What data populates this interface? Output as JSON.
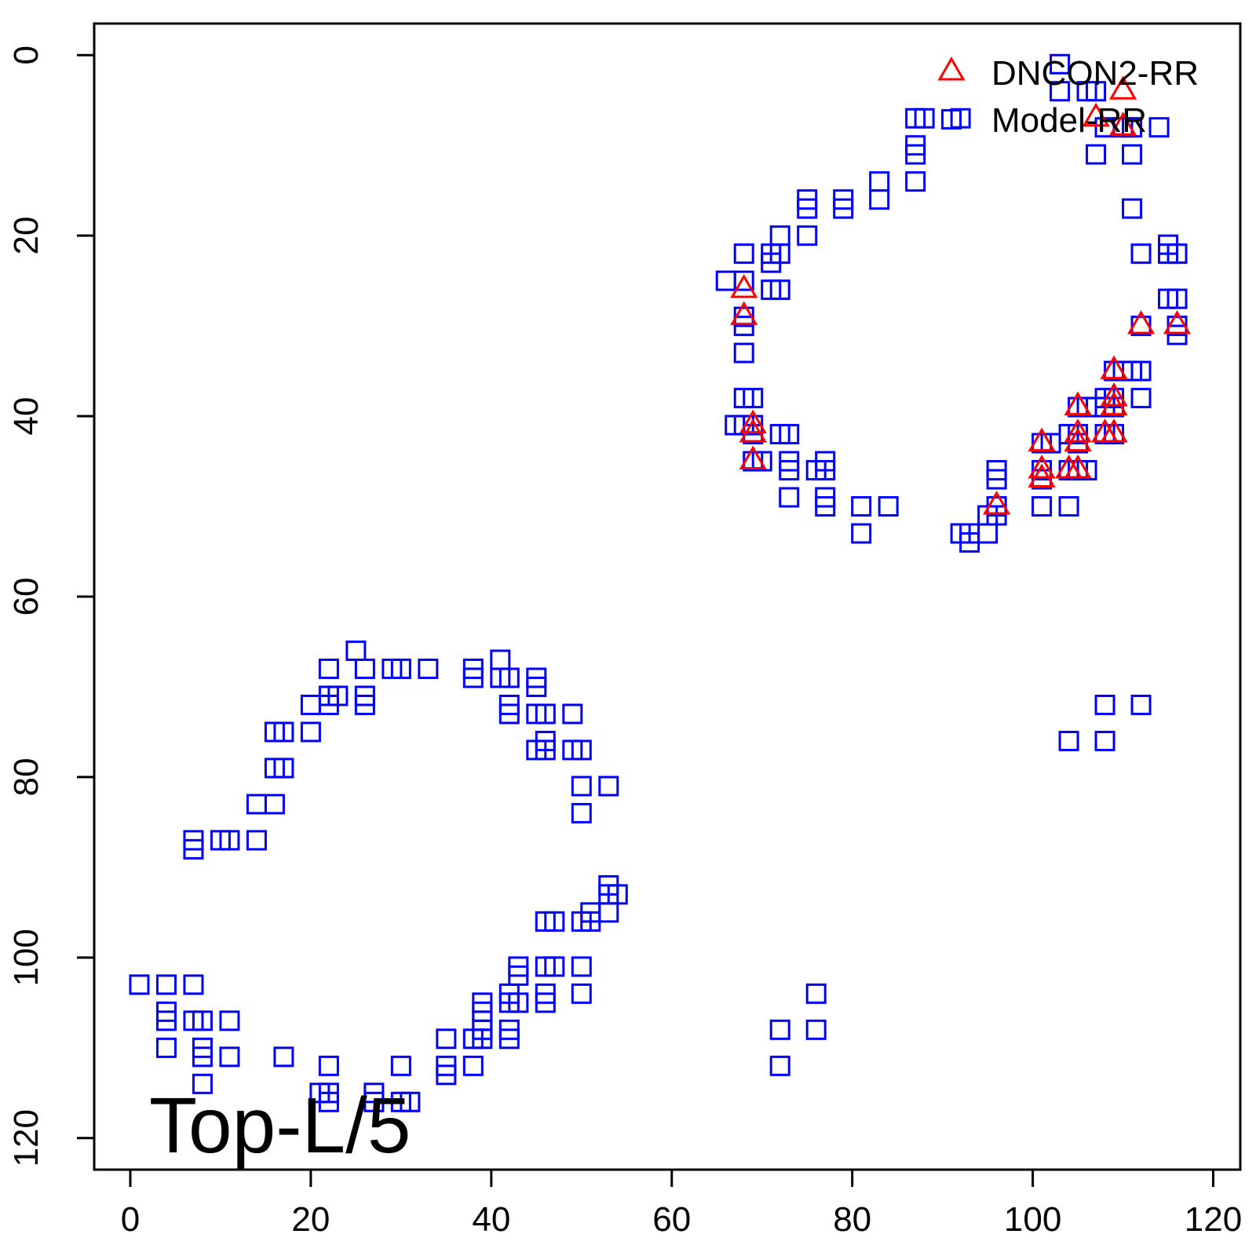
{
  "chart_data": {
    "type": "scatter",
    "title": "",
    "xlabel": "",
    "ylabel": "",
    "xlim": [
      -4,
      123
    ],
    "ylim": [
      123.5,
      -3.5
    ],
    "y_inverted": true,
    "grid": false,
    "legend_position": "top-right",
    "x_ticks": [
      0,
      20,
      40,
      60,
      80,
      100,
      120
    ],
    "x_tick_labels": [
      "0",
      "20",
      "40",
      "60",
      "80",
      "100",
      "120"
    ],
    "y_ticks": [
      0,
      20,
      40,
      60,
      80,
      100,
      120
    ],
    "y_tick_labels": [
      "0",
      "20",
      "40",
      "60",
      "80",
      "100",
      "120"
    ],
    "annotation": "Top-L/5",
    "series": [
      {
        "name": "DNCON2-RR",
        "marker": "triangle",
        "color": "#ff0000",
        "points": [
          [
            110,
            4
          ],
          [
            110,
            8
          ],
          [
            107,
            7
          ],
          [
            112,
            30
          ],
          [
            116,
            30
          ],
          [
            109,
            35
          ],
          [
            109,
            38
          ],
          [
            109,
            39
          ],
          [
            109,
            42
          ],
          [
            108,
            42
          ],
          [
            105,
            39
          ],
          [
            105,
            42
          ],
          [
            105,
            43
          ],
          [
            105,
            46
          ],
          [
            104,
            46
          ],
          [
            101,
            43
          ],
          [
            101,
            46
          ],
          [
            101,
            47
          ],
          [
            96,
            50
          ],
          [
            68,
            26
          ],
          [
            68,
            29
          ],
          [
            69,
            41
          ],
          [
            69,
            42
          ],
          [
            69,
            45
          ]
        ]
      },
      {
        "name": "Model-RR",
        "marker": "square",
        "color": "#0000ff",
        "points": [
          [
            103,
            1
          ],
          [
            103,
            4
          ],
          [
            106,
            4
          ],
          [
            107,
            4
          ],
          [
            108,
            8
          ],
          [
            110,
            8
          ],
          [
            111,
            8
          ],
          [
            114,
            8
          ],
          [
            107,
            11
          ],
          [
            111,
            11
          ],
          [
            111,
            17
          ],
          [
            87,
            7
          ],
          [
            88,
            7
          ],
          [
            92,
            7
          ],
          [
            87,
            10
          ],
          [
            87,
            11
          ],
          [
            87,
            14
          ],
          [
            83,
            14
          ],
          [
            83,
            16
          ],
          [
            75,
            16
          ],
          [
            75,
            17
          ],
          [
            79,
            16
          ],
          [
            79,
            17
          ],
          [
            75,
            20
          ],
          [
            72,
            20
          ],
          [
            71,
            22
          ],
          [
            72,
            22
          ],
          [
            71,
            23
          ],
          [
            68,
            22
          ],
          [
            66,
            25
          ],
          [
            68,
            25
          ],
          [
            71,
            26
          ],
          [
            72,
            26
          ],
          [
            68,
            29
          ],
          [
            68,
            30
          ],
          [
            68,
            33
          ],
          [
            68,
            38
          ],
          [
            69,
            38
          ],
          [
            67,
            41
          ],
          [
            68,
            41
          ],
          [
            69,
            41
          ],
          [
            69,
            42
          ],
          [
            69,
            45
          ],
          [
            70,
            45
          ],
          [
            72,
            42
          ],
          [
            73,
            42
          ],
          [
            73,
            45
          ],
          [
            73,
            46
          ],
          [
            73,
            49
          ],
          [
            76,
            46
          ],
          [
            77,
            45
          ],
          [
            77,
            46
          ],
          [
            77,
            49
          ],
          [
            77,
            50
          ],
          [
            81,
            50
          ],
          [
            84,
            50
          ],
          [
            81,
            53
          ],
          [
            92,
            53
          ],
          [
            93,
            53
          ],
          [
            93,
            54
          ],
          [
            95,
            53
          ],
          [
            95,
            51
          ],
          [
            96,
            51
          ],
          [
            96,
            50
          ],
          [
            96,
            46
          ],
          [
            96,
            47
          ],
          [
            101,
            43
          ],
          [
            102,
            43
          ],
          [
            101,
            46
          ],
          [
            101,
            47
          ],
          [
            101,
            50
          ],
          [
            104,
            50
          ],
          [
            104,
            42
          ],
          [
            104,
            46
          ],
          [
            105,
            46
          ],
          [
            106,
            46
          ],
          [
            105,
            42
          ],
          [
            105,
            43
          ],
          [
            105,
            39
          ],
          [
            106,
            39
          ],
          [
            107,
            39
          ],
          [
            108,
            42
          ],
          [
            109,
            42
          ],
          [
            108,
            39
          ],
          [
            109,
            39
          ],
          [
            108,
            38
          ],
          [
            109,
            38
          ],
          [
            109,
            35
          ],
          [
            110,
            35
          ],
          [
            111,
            35
          ],
          [
            112,
            35
          ],
          [
            112,
            38
          ],
          [
            112,
            30
          ],
          [
            116,
            30
          ],
          [
            116,
            31
          ],
          [
            112,
            22
          ],
          [
            115,
            22
          ],
          [
            116,
            22
          ],
          [
            115,
            21
          ],
          [
            115,
            27
          ],
          [
            116,
            27
          ],
          [
            108,
            72
          ],
          [
            112,
            72
          ],
          [
            104,
            76
          ],
          [
            108,
            76
          ],
          [
            25,
            66
          ],
          [
            22,
            68
          ],
          [
            26,
            68
          ],
          [
            29,
            68
          ],
          [
            30,
            68
          ],
          [
            33,
            68
          ],
          [
            38,
            68
          ],
          [
            38,
            69
          ],
          [
            41,
            67
          ],
          [
            41,
            69
          ],
          [
            42,
            69
          ],
          [
            22,
            71
          ],
          [
            23,
            71
          ],
          [
            22,
            72
          ],
          [
            26,
            71
          ],
          [
            26,
            72
          ],
          [
            20,
            72
          ],
          [
            20,
            75
          ],
          [
            42,
            72
          ],
          [
            42,
            73
          ],
          [
            45,
            69
          ],
          [
            45,
            70
          ],
          [
            45,
            73
          ],
          [
            46,
            73
          ],
          [
            46,
            76
          ],
          [
            45,
            77
          ],
          [
            46,
            77
          ],
          [
            49,
            73
          ],
          [
            49,
            77
          ],
          [
            50,
            77
          ],
          [
            16,
            75
          ],
          [
            17,
            75
          ],
          [
            16,
            79
          ],
          [
            17,
            79
          ],
          [
            14,
            83
          ],
          [
            16,
            83
          ],
          [
            50,
            81
          ],
          [
            53,
            81
          ],
          [
            50,
            84
          ],
          [
            7,
            87
          ],
          [
            7,
            88
          ],
          [
            10,
            87
          ],
          [
            11,
            87
          ],
          [
            14,
            87
          ],
          [
            53,
            92
          ],
          [
            53,
            93
          ],
          [
            54,
            93
          ],
          [
            53,
            95
          ],
          [
            51,
            95
          ],
          [
            51,
            96
          ],
          [
            50,
            96
          ],
          [
            46,
            96
          ],
          [
            47,
            96
          ],
          [
            46,
            101
          ],
          [
            47,
            101
          ],
          [
            50,
            101
          ],
          [
            43,
            101
          ],
          [
            43,
            102
          ],
          [
            50,
            104
          ],
          [
            46,
            104
          ],
          [
            46,
            105
          ],
          [
            42,
            104
          ],
          [
            42,
            105
          ],
          [
            43,
            105
          ],
          [
            39,
            105
          ],
          [
            39,
            106
          ],
          [
            39,
            107
          ],
          [
            39,
            108
          ],
          [
            39,
            109
          ],
          [
            38,
            109
          ],
          [
            42,
            108
          ],
          [
            42,
            109
          ],
          [
            35,
            109
          ],
          [
            35,
            112
          ],
          [
            35,
            113
          ],
          [
            38,
            112
          ],
          [
            30,
            112
          ],
          [
            30,
            116
          ],
          [
            31,
            116
          ],
          [
            27,
            115
          ],
          [
            27,
            116
          ],
          [
            22,
            112
          ],
          [
            21,
            115
          ],
          [
            22,
            115
          ],
          [
            22,
            116
          ],
          [
            17,
            111
          ],
          [
            11,
            111
          ],
          [
            8,
            111
          ],
          [
            8,
            110
          ],
          [
            8,
            114
          ],
          [
            8,
            107
          ],
          [
            7,
            107
          ],
          [
            7,
            103
          ],
          [
            11,
            107
          ],
          [
            4,
            103
          ],
          [
            4,
            106
          ],
          [
            4,
            107
          ],
          [
            4,
            110
          ],
          [
            1,
            103
          ],
          [
            72,
            108
          ],
          [
            72,
            112
          ],
          [
            76,
            104
          ],
          [
            76,
            108
          ]
        ]
      }
    ]
  }
}
